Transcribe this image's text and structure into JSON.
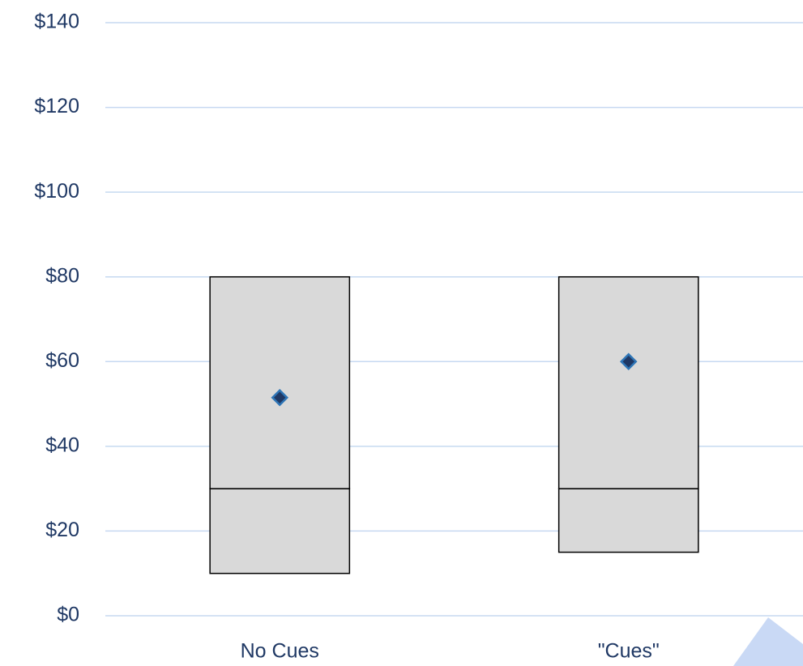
{
  "chart_data": {
    "type": "box",
    "categories": [
      "No Cues",
      "\"Cues\""
    ],
    "q1": [
      10,
      15
    ],
    "median": [
      30,
      30
    ],
    "q3": [
      80,
      80
    ],
    "mean": [
      51.5,
      60
    ],
    "color": "#d9d9d9",
    "mean_color": "#1f3864",
    "ylim": [
      0,
      140
    ],
    "yticks": [
      {
        "value": 0,
        "label": "$0"
      },
      {
        "value": 20,
        "label": "$20"
      },
      {
        "value": 40,
        "label": "$40"
      },
      {
        "value": 60,
        "label": "$60"
      },
      {
        "value": 80,
        "label": "$80"
      },
      {
        "value": 100,
        "label": "$100"
      },
      {
        "value": 120,
        "label": "$120"
      },
      {
        "value": 140,
        "label": "$140"
      }
    ],
    "grid": true
  }
}
